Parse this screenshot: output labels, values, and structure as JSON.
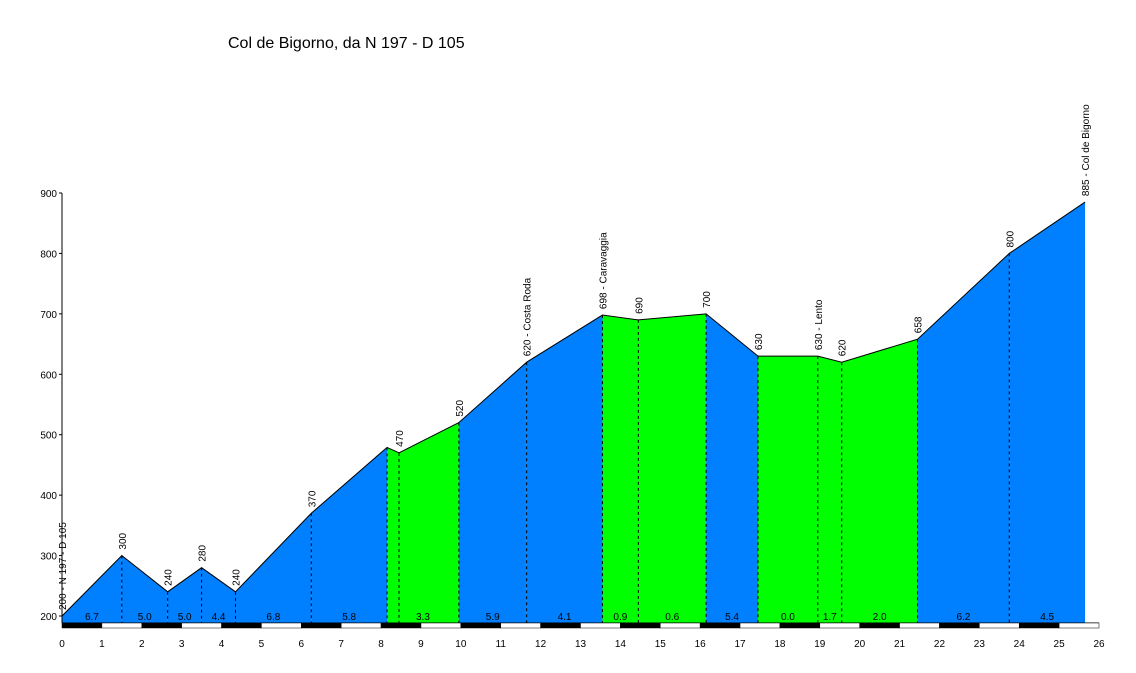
{
  "chart_data": {
    "type": "area",
    "title": "Col de Bigorno, da N 197 - D 105",
    "xlabel": "",
    "ylabel": "",
    "xlim": [
      0,
      26
    ],
    "ylim": [
      200,
      900
    ],
    "x_ticks": [
      "0",
      "1",
      "2",
      "3",
      "4",
      "5",
      "6",
      "7",
      "8",
      "9",
      "10",
      "11",
      "12",
      "13",
      "14",
      "15",
      "16",
      "17",
      "18",
      "19",
      "20",
      "21",
      "22",
      "23",
      "24",
      "25",
      "26"
    ],
    "y_ticks": [
      "200",
      "300",
      "400",
      "500",
      "600",
      "700",
      "800",
      "900"
    ],
    "colors": {
      "climb": "#0080ff",
      "easy": "#00ff00",
      "outline": "#000000"
    },
    "profile": [
      {
        "x": 0.0,
        "y": 200,
        "label": "200 - N 197 - D 105"
      },
      {
        "x": 1.5,
        "y": 300,
        "label": "300"
      },
      {
        "x": 2.65,
        "y": 240,
        "label": "240"
      },
      {
        "x": 3.5,
        "y": 280,
        "label": "280"
      },
      {
        "x": 4.35,
        "y": 240,
        "label": "240"
      },
      {
        "x": 6.25,
        "y": 370,
        "label": "370"
      },
      {
        "x": 8.15,
        "y": 479,
        "label": ""
      },
      {
        "x": 8.45,
        "y": 470,
        "label": "470"
      },
      {
        "x": 9.95,
        "y": 520,
        "label": "520"
      },
      {
        "x": 11.65,
        "y": 620,
        "label": "620 - Costa Roda"
      },
      {
        "x": 13.55,
        "y": 698,
        "label": "698 - Caravaggia"
      },
      {
        "x": 14.45,
        "y": 690,
        "label": "690"
      },
      {
        "x": 16.15,
        "y": 700,
        "label": "700"
      },
      {
        "x": 17.45,
        "y": 630,
        "label": "630"
      },
      {
        "x": 18.95,
        "y": 630,
        "label": "630 - Lento"
      },
      {
        "x": 19.55,
        "y": 620,
        "label": "620"
      },
      {
        "x": 21.45,
        "y": 658,
        "label": "658"
      },
      {
        "x": 23.75,
        "y": 800,
        "label": "800"
      },
      {
        "x": 25.65,
        "y": 885,
        "label": "885 - Col de Bigorno"
      }
    ],
    "segments": [
      {
        "from": 0.0,
        "to": 1.5,
        "gradient": "6.7",
        "kind": "climb"
      },
      {
        "from": 1.5,
        "to": 2.65,
        "gradient": "5.0",
        "kind": "climb"
      },
      {
        "from": 2.65,
        "to": 3.5,
        "gradient": "5.0",
        "kind": "climb"
      },
      {
        "from": 3.5,
        "to": 4.35,
        "gradient": "4.4",
        "kind": "climb"
      },
      {
        "from": 4.35,
        "to": 6.25,
        "gradient": "6.8",
        "kind": "climb"
      },
      {
        "from": 6.25,
        "to": 8.15,
        "gradient": "5.8",
        "kind": "climb"
      },
      {
        "from": 8.15,
        "to": 9.95,
        "gradient": "3.3",
        "kind": "easy"
      },
      {
        "from": 9.95,
        "to": 11.65,
        "gradient": "5.9",
        "kind": "climb"
      },
      {
        "from": 11.65,
        "to": 13.55,
        "gradient": "4.1",
        "kind": "climb"
      },
      {
        "from": 13.55,
        "to": 14.45,
        "gradient": "0.9",
        "kind": "easy"
      },
      {
        "from": 14.45,
        "to": 16.15,
        "gradient": "0.6",
        "kind": "easy"
      },
      {
        "from": 16.15,
        "to": 17.45,
        "gradient": "5.4",
        "kind": "climb"
      },
      {
        "from": 17.45,
        "to": 18.95,
        "gradient": "0.0",
        "kind": "easy"
      },
      {
        "from": 18.95,
        "to": 19.55,
        "gradient": "1.7",
        "kind": "easy"
      },
      {
        "from": 19.55,
        "to": 21.45,
        "gradient": "2.0",
        "kind": "easy"
      },
      {
        "from": 21.45,
        "to": 23.75,
        "gradient": "6.2",
        "kind": "climb"
      },
      {
        "from": 23.75,
        "to": 25.65,
        "gradient": "4.5",
        "kind": "climb"
      }
    ],
    "grid": false,
    "legend": "none"
  }
}
